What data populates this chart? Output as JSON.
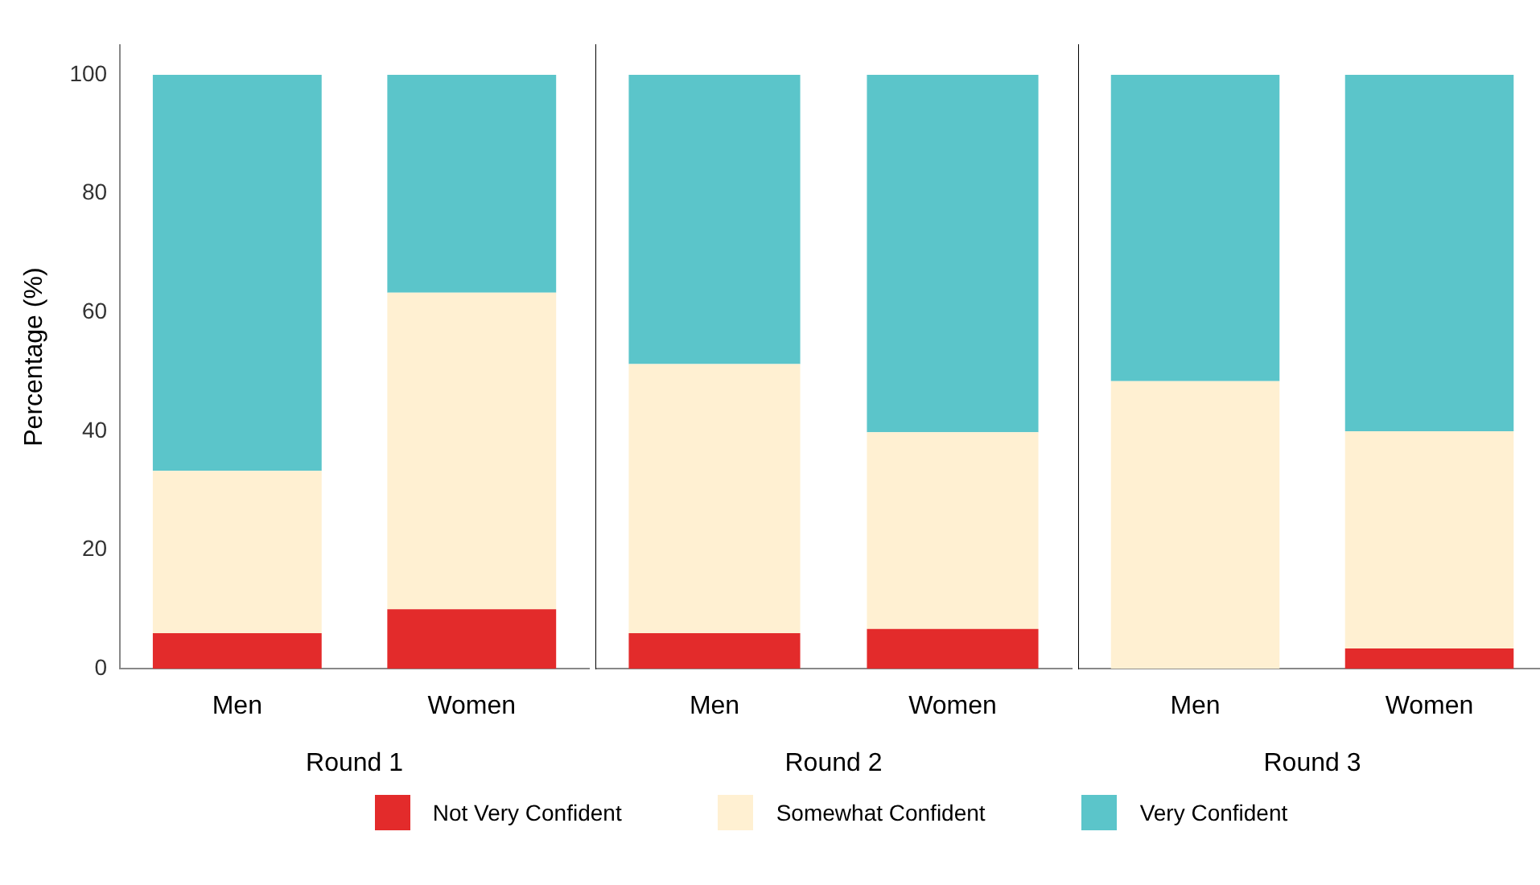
{
  "chart_data": [
    {
      "type": "bar",
      "stacked": true,
      "ylabel": "Percentage (%)",
      "xlabel": "Round 1",
      "categories": [
        "Men",
        "Women"
      ],
      "ylim": [
        0,
        105
      ],
      "yticks": [
        0,
        20,
        40,
        60,
        80,
        100
      ],
      "grid": false,
      "legend": "bottom",
      "series": [
        {
          "name": "Not Very Confident",
          "color": "#e32b2b",
          "values": [
            6,
            10
          ]
        },
        {
          "name": "Somewhat Confident",
          "color": "#fff0d2",
          "values": [
            27.3,
            53.3
          ]
        },
        {
          "name": "Very Confident",
          "color": "#5bc5ca",
          "values": [
            66.7,
            36.7
          ]
        }
      ]
    },
    {
      "type": "bar",
      "stacked": true,
      "xlabel": "Round 2",
      "categories": [
        "Men",
        "Women"
      ],
      "ylim": [
        0,
        105
      ],
      "tick_labels": "x",
      "grid": false,
      "series": [
        {
          "color": "#e32b2b",
          "values": [
            6,
            6.7
          ]
        },
        {
          "color": "#fff0d2",
          "values": [
            45.3,
            33.1
          ]
        },
        {
          "color": "#5bc5ca",
          "values": [
            48.7,
            60.2
          ]
        }
      ]
    },
    {
      "type": "bar",
      "stacked": true,
      "xlabel": "Round 3",
      "categories": [
        "Men",
        "Women"
      ],
      "ylim": [
        0,
        105
      ],
      "tick_labels": "x",
      "grid": false,
      "series": [
        {
          "color": "#e32b2b",
          "values": [
            0,
            3.4
          ]
        },
        {
          "color": "#fff0d2",
          "values": [
            48.4,
            36.6
          ]
        },
        {
          "color": "#5bc5ca",
          "values": [
            51.6,
            60
          ]
        }
      ]
    }
  ]
}
